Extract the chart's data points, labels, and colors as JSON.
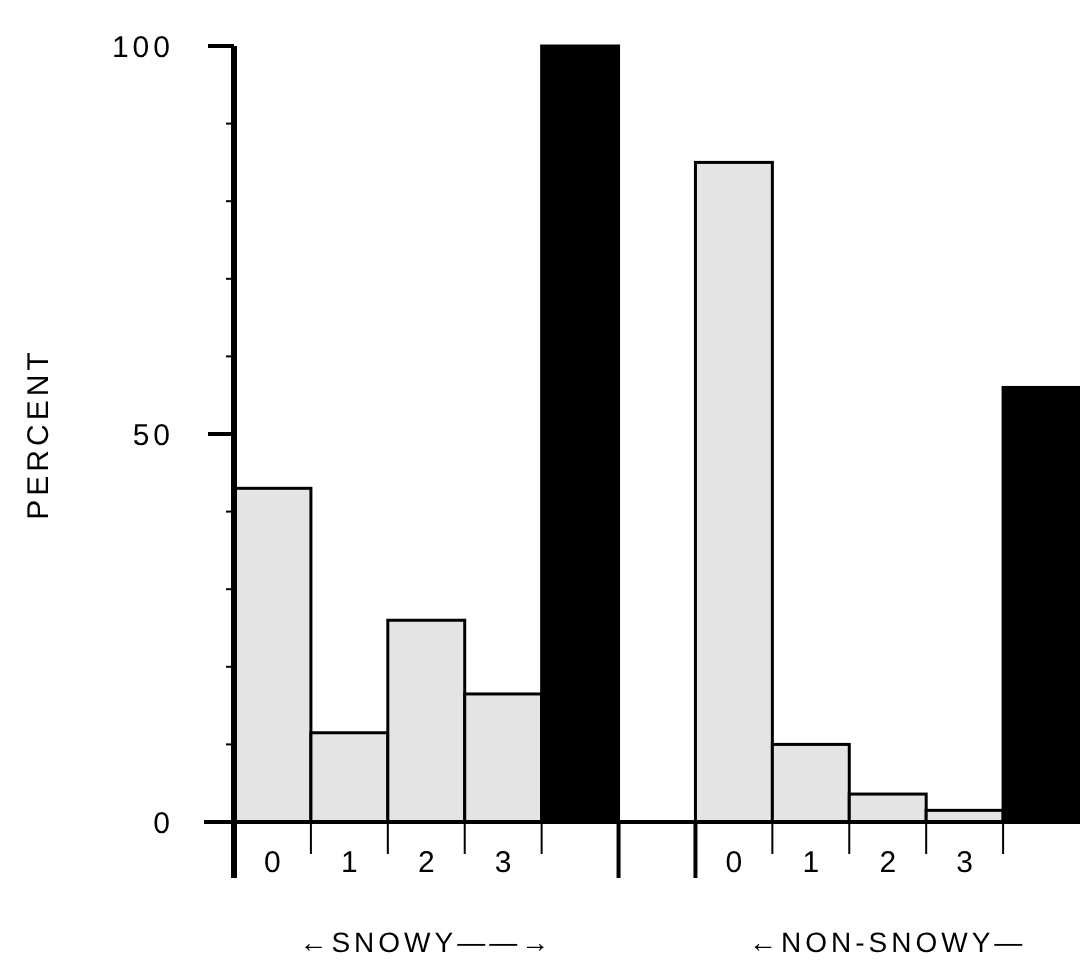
{
  "chart_data": {
    "type": "bar",
    "ylabel": "PERCENT",
    "categories": [
      "0",
      "1",
      "2",
      "3",
      null,
      null,
      "0",
      "1",
      "2",
      "3",
      null
    ],
    "values": [
      43,
      11.5,
      26,
      16.5,
      100,
      null,
      85,
      10,
      3.6,
      1.5,
      56
    ],
    "colors": [
      "#e4e4e4",
      "#e4e4e4",
      "#e4e4e4",
      "#e4e4e4",
      "#000000",
      null,
      "#e4e4e4",
      "#e4e4e4",
      "#e4e4e4",
      "#e4e4e4",
      "#000000"
    ],
    "ylim": [
      0,
      100
    ],
    "yticks": [
      0,
      {
        "value": 10,
        "label": null
      },
      {
        "value": 20,
        "label": null
      },
      {
        "value": 30,
        "label": null
      },
      {
        "value": 40,
        "label": null
      },
      50,
      {
        "value": 60,
        "label": null
      },
      {
        "value": 70,
        "label": null
      },
      {
        "value": 80,
        "label": null
      },
      {
        "value": 90,
        "label": null
      },
      100
    ],
    "annotations": [
      "←SNOWY——→",
      "←NON-SNOWY—"
    ]
  }
}
